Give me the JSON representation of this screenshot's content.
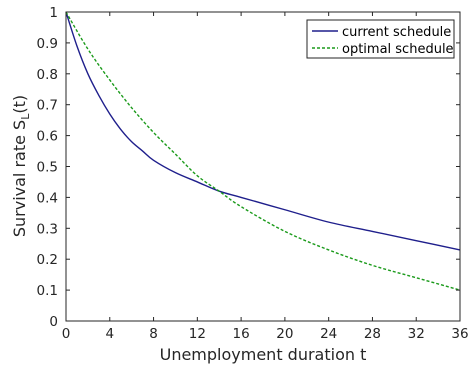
{
  "chart_data": {
    "type": "line",
    "title": "",
    "xlabel": "Unemployment duration t",
    "ylabel": "Survival rate S",
    "ylabel_sub": "L",
    "ylabel_suffix": "(t)",
    "xlim": [
      0,
      36
    ],
    "ylim": [
      0,
      1
    ],
    "xticks": [
      0,
      4,
      8,
      12,
      16,
      20,
      24,
      28,
      32,
      36
    ],
    "yticks": [
      0,
      0.1,
      0.2,
      0.3,
      0.4,
      0.5,
      0.6,
      0.7,
      0.8,
      0.9,
      1
    ],
    "grid": false,
    "legend_position": "top-right",
    "series": [
      {
        "name": "current schedule",
        "color": "#1f1f8c",
        "dash": "solid",
        "x": [
          0,
          1,
          2,
          3,
          4,
          5,
          6,
          7,
          8,
          10,
          12,
          14,
          16,
          20,
          24,
          28,
          32,
          36
        ],
        "y": [
          1.0,
          0.89,
          0.8,
          0.73,
          0.67,
          0.62,
          0.58,
          0.55,
          0.52,
          0.48,
          0.45,
          0.42,
          0.4,
          0.36,
          0.32,
          0.29,
          0.26,
          0.23
        ]
      },
      {
        "name": "optimal schedule",
        "color": "#1a9a1a",
        "dash": "dashed",
        "x": [
          0,
          2,
          4,
          6,
          8,
          10,
          12,
          14,
          16,
          20,
          24,
          28,
          32,
          36
        ],
        "y": [
          1.0,
          0.88,
          0.78,
          0.69,
          0.61,
          0.54,
          0.47,
          0.42,
          0.37,
          0.29,
          0.23,
          0.18,
          0.14,
          0.1
        ]
      }
    ]
  }
}
